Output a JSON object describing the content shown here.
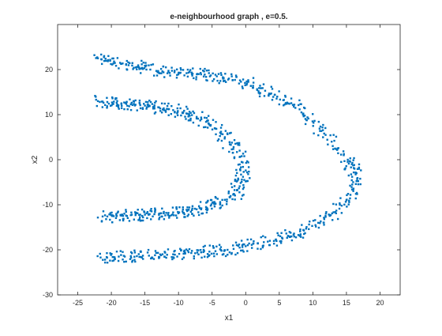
{
  "chart_data": {
    "type": "scatter",
    "title": "e-neighbourhood graph , e=0.5.",
    "xlabel": "x1",
    "ylabel": "x2",
    "xlim": [
      -28,
      23
    ],
    "ylim": [
      -30,
      30
    ],
    "xticks": [
      -25,
      -20,
      -15,
      -10,
      -5,
      0,
      5,
      10,
      15,
      20
    ],
    "yticks": [
      -30,
      -20,
      -10,
      0,
      10,
      20
    ],
    "grid": false,
    "box": true,
    "marker_color": "#0072BD",
    "series": [
      {
        "values_description_excluded": true,
        "clusters": [
          {
            "label": "outer arc",
            "x": [
              -22,
              -21.5,
              -20.5,
              -19.6,
              -18.7,
              -17.8,
              -16.9,
              -16,
              -15.1,
              -14.2,
              -13.3,
              -12.4,
              -11.5,
              -10.6,
              -9.7,
              -8.8,
              -7.9,
              -7,
              -6.1,
              -5.2,
              -4.3,
              -3.4,
              -2.5,
              -1.6,
              -0.7,
              0.2,
              1.1,
              2,
              2.9,
              3.8,
              4.7,
              5.6,
              6.5,
              7.4,
              8.3,
              9.2,
              10.1,
              11,
              11.9,
              12.8,
              13.7,
              14.6,
              15.2,
              15.8,
              16.2,
              16.5,
              16.6,
              16.4,
              16,
              15.6,
              15,
              14.3,
              13.5,
              12.6,
              11.7,
              10.8,
              9.9,
              9,
              8.1,
              7.2,
              6.3,
              5.4,
              4.5,
              3.6,
              2.7,
              1.8,
              0.9,
              0,
              -0.9,
              -1.8,
              -2.7,
              -3.6,
              -4.5,
              -5.4,
              -6.3,
              -7.2,
              -8.1,
              -9,
              -9.9,
              -10.8,
              -11.7,
              -12.6,
              -13.5,
              -14.4,
              -15.3,
              -16.2,
              -17.1,
              -18,
              -18.9,
              -19.8,
              -20.7,
              -21.6
            ],
            "y": [
              22.5,
              22.3,
              22.1,
              21.8,
              21.5,
              21.2,
              20.9,
              20.6,
              20.3,
              20,
              19.7,
              19.6,
              19.5,
              19.4,
              19.3,
              19.2,
              19.1,
              19,
              18.9,
              18.7,
              18.5,
              18.3,
              18,
              17.7,
              17.3,
              16.9,
              16.4,
              15.9,
              15.3,
              14.7,
              14,
              13.2,
              12.4,
              11.5,
              10.5,
              9.4,
              8.2,
              6.9,
              5.5,
              4,
              2.5,
              1,
              0,
              -1,
              -2,
              -3,
              -4.2,
              -5.4,
              -6.6,
              -7.8,
              -9,
              -10.2,
              -11.3,
              -12.3,
              -13.2,
              -14,
              -14.7,
              -15.3,
              -15.9,
              -16.4,
              -16.9,
              -17.3,
              -17.7,
              -18,
              -18.3,
              -18.6,
              -18.9,
              -19.2,
              -19.5,
              -19.8,
              -20,
              -20.2,
              -20.3,
              -20.4,
              -20.5,
              -20.6,
              -20.7,
              -20.8,
              -20.9,
              -21,
              -21.1,
              -21.2,
              -21.2,
              -21.3,
              -21.3,
              -21.4,
              -21.4,
              -21.5,
              -21.5,
              -21.6,
              -21.6,
              -21.7
            ]
          },
          {
            "label": "inner arc",
            "x": [
              -22,
              -21.3,
              -20.6,
              -19.9,
              -19.2,
              -18.5,
              -17.8,
              -17.1,
              -16.4,
              -15.7,
              -15,
              -14.3,
              -13.6,
              -12.9,
              -12.2,
              -11.5,
              -10.8,
              -10.1,
              -9.4,
              -8.7,
              -8,
              -7.3,
              -6.6,
              -5.9,
              -5.2,
              -4.5,
              -3.8,
              -3.1,
              -2.4,
              -1.8,
              -1.3,
              -0.9,
              -0.6,
              -0.4,
              -0.3,
              -0.4,
              -0.6,
              -0.9,
              -1.3,
              -1.8,
              -2.4,
              -3.1,
              -3.8,
              -4.5,
              -5.2,
              -5.9,
              -6.6,
              -7.3,
              -8,
              -8.7,
              -9.4,
              -10.1,
              -10.8,
              -11.5,
              -12.2,
              -12.9,
              -13.6,
              -14.3,
              -15,
              -15.7,
              -16.4,
              -17.1,
              -17.8,
              -18.5,
              -19.2,
              -19.9,
              -20.6,
              -21.3
            ],
            "y": [
              13,
              12.9,
              12.8,
              12.7,
              12.6,
              12.5,
              12.4,
              12.3,
              12.2,
              12.1,
              12,
              11.9,
              11.8,
              11.6,
              11.4,
              11.2,
              11,
              10.8,
              10.5,
              10.2,
              9.9,
              9.5,
              9,
              8.4,
              7.7,
              6.9,
              6,
              5,
              3.9,
              2.8,
              1.7,
              0.6,
              -0.5,
              -1.6,
              -2.7,
              -3.8,
              -4.9,
              -5.9,
              -6.8,
              -7.6,
              -8.3,
              -8.9,
              -9.4,
              -9.8,
              -10.2,
              -10.5,
              -10.8,
              -11,
              -11.2,
              -11.4,
              -11.5,
              -11.6,
              -11.7,
              -11.8,
              -11.9,
              -12,
              -12.1,
              -12.1,
              -12.2,
              -12.2,
              -12.3,
              -12.3,
              -12.4,
              -12.4,
              -12.5,
              -12.5,
              -12.6,
              -12.6
            ]
          }
        ]
      }
    ]
  }
}
